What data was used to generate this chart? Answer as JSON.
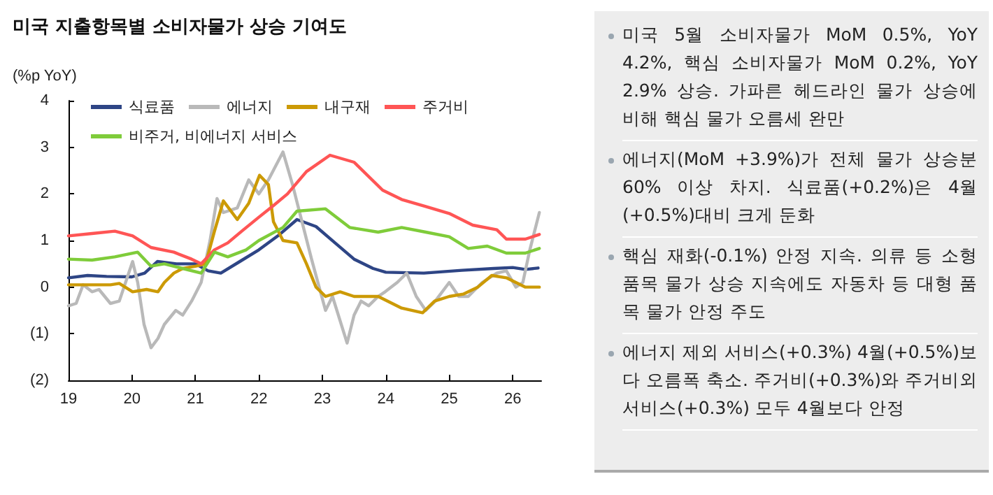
{
  "chart_data": [
    {
      "type": "line",
      "title": "미국 지출항목별 소비자물가 상승 기여도",
      "ylabel": "(%p YoY)",
      "legend": "top left",
      "xlim": [
        2019,
        2026.45
      ],
      "xticks": [
        {
          "value": 2019,
          "label": "19"
        },
        {
          "value": 2020,
          "label": "20"
        },
        {
          "value": 2021,
          "label": "21"
        },
        {
          "value": 2022,
          "label": "22"
        },
        {
          "value": 2023,
          "label": "23"
        },
        {
          "value": 2024,
          "label": "24"
        },
        {
          "value": 2025,
          "label": "25"
        },
        {
          "value": 2026,
          "label": "26"
        }
      ],
      "ylim": [
        -2,
        4
      ],
      "yticks": [
        {
          "value": -2,
          "label": "(2)"
        },
        {
          "value": -1,
          "label": "(1)"
        },
        0,
        1,
        2,
        3,
        4
      ],
      "series": [
        {
          "name": "식료품",
          "color": "#2e4585",
          "x": [
            2019,
            2019.3,
            2019.6,
            2020,
            2020.2,
            2020.4,
            2020.7,
            2021,
            2021.2,
            2021.4,
            2021.7,
            2022,
            2022.3,
            2022.6,
            2022.9,
            2023.2,
            2023.5,
            2023.8,
            2024,
            2024.6,
            2025.2,
            2025.7,
            2026,
            2026.2,
            2026.4
          ],
          "values": [
            0.2,
            0.25,
            0.23,
            0.22,
            0.3,
            0.55,
            0.5,
            0.5,
            0.35,
            0.3,
            0.55,
            0.8,
            1.1,
            1.45,
            1.3,
            0.95,
            0.6,
            0.4,
            0.32,
            0.3,
            0.36,
            0.4,
            0.42,
            0.38,
            0.41
          ]
        },
        {
          "name": "에너지",
          "color": "#b9b9b9",
          "x": [
            2019,
            2019.12,
            2019.23,
            2019.37,
            2019.48,
            2019.66,
            2019.8,
            2020.01,
            2020.09,
            2020.19,
            2020.3,
            2020.41,
            2020.51,
            2020.69,
            2020.8,
            2020.94,
            2021.09,
            2021.23,
            2021.34,
            2021.44,
            2021.66,
            2021.84,
            2022,
            2022.15,
            2022.38,
            2022.53,
            2022.68,
            2022.83,
            2023.05,
            2023.16,
            2023.39,
            2023.5,
            2023.61,
            2023.73,
            2023.88,
            2023.99,
            2024.18,
            2024.33,
            2024.48,
            2024.63,
            2024.78,
            2025,
            2025.15,
            2025.3,
            2025.52,
            2025.75,
            2025.9,
            2026.05,
            2026.16,
            2026.27,
            2026.42
          ],
          "values": [
            -0.4,
            -0.35,
            0.05,
            -0.1,
            -0.05,
            -0.35,
            -0.3,
            0.55,
            0.1,
            -0.8,
            -1.3,
            -1.1,
            -0.8,
            -0.5,
            -0.6,
            -0.3,
            0.1,
            1.0,
            1.9,
            1.6,
            1.7,
            2.3,
            2.0,
            2.3,
            2.9,
            2.2,
            1.4,
            0.6,
            -0.5,
            -0.2,
            -1.2,
            -0.6,
            -0.3,
            -0.4,
            -0.2,
            -0.1,
            0.1,
            0.3,
            -0.2,
            -0.5,
            -0.3,
            0.1,
            -0.2,
            -0.2,
            0.1,
            0.3,
            0.35,
            0,
            0.1,
            0.8,
            1.6
          ]
        },
        {
          "name": "내구재",
          "color": "#cc9a06",
          "x": [
            2019,
            2019.37,
            2019.66,
            2019.8,
            2020.01,
            2020.23,
            2020.41,
            2020.51,
            2020.66,
            2020.8,
            2021.01,
            2021.16,
            2021.3,
            2021.44,
            2021.66,
            2021.84,
            2022.01,
            2022.15,
            2022.23,
            2022.38,
            2022.6,
            2022.75,
            2022.9,
            2023.05,
            2023.28,
            2023.5,
            2023.88,
            2024.25,
            2024.58,
            2024.77,
            2025,
            2025.22,
            2025.45,
            2025.67,
            2025.9,
            2026.05,
            2026.2,
            2026.42
          ],
          "values": [
            0.05,
            0.05,
            0.05,
            0.08,
            -0.1,
            -0.05,
            -0.1,
            0.1,
            0.3,
            0.4,
            0.45,
            0.5,
            1.2,
            1.85,
            1.45,
            1.8,
            2.4,
            2.2,
            1.4,
            1.0,
            0.95,
            0.5,
            0,
            -0.2,
            -0.1,
            -0.2,
            -0.2,
            -0.45,
            -0.55,
            -0.3,
            -0.2,
            -0.15,
            0,
            0.25,
            0.2,
            0.1,
            0,
            0
          ]
        },
        {
          "name": "주거비",
          "color": "#ff5555",
          "x": [
            2019,
            2019.37,
            2019.73,
            2020.01,
            2020.3,
            2020.66,
            2020.94,
            2021.09,
            2021.3,
            2021.51,
            2021.73,
            2022,
            2022.23,
            2022.45,
            2022.75,
            2023.12,
            2023.5,
            2023.95,
            2024.25,
            2024.63,
            2025,
            2025.37,
            2025.75,
            2025.9,
            2026.2,
            2026.42
          ],
          "values": [
            1.1,
            1.15,
            1.2,
            1.1,
            0.85,
            0.75,
            0.6,
            0.5,
            0.8,
            0.95,
            1.2,
            1.5,
            1.75,
            2.0,
            2.48,
            2.83,
            2.68,
            2.08,
            1.88,
            1.73,
            1.58,
            1.33,
            1.23,
            1.03,
            1.03,
            1.13
          ]
        },
        {
          "name": "비주거, 비에너지 서비스",
          "color": "#7fcc3a",
          "x": [
            2019,
            2019.37,
            2019.73,
            2020.09,
            2020.3,
            2020.51,
            2020.8,
            2021.09,
            2021.3,
            2021.51,
            2021.8,
            2022,
            2022.38,
            2022.6,
            2023.05,
            2023.43,
            2023.88,
            2024.25,
            2024.63,
            2025,
            2025.3,
            2025.6,
            2025.9,
            2026.2,
            2026.42
          ],
          "values": [
            0.6,
            0.58,
            0.65,
            0.75,
            0.45,
            0.5,
            0.4,
            0.3,
            0.75,
            0.65,
            0.8,
            1.0,
            1.28,
            1.63,
            1.68,
            1.28,
            1.18,
            1.28,
            1.18,
            1.08,
            0.83,
            0.88,
            0.73,
            0.73,
            0.83
          ]
        }
      ]
    },
    {
      "type": "other",
      "annotations": [
        "미국 5월 소비자물가 MoM 0.5%, YoY 4.2%, 핵심 소비자물가 MoM 0.2%, YoY 2.9% 상승. 가파른 헤드라인 물가 상승에 비해 핵심 물가 오름세 완만",
        "에너지(MoM +3.9%)가 전체 물가 상승분 60% 이상 차지. 식료품(+0.2%)은 4월(+0.5%)대비 크게 둔화",
        "핵심 재화(-0.1%) 안정 지속. 의류 등 소형 품목 물가 상승 지속에도 자동차 등 대형 품목 물가 안정 주도",
        "에너지 제외 서비스(+0.3%) 4월(+0.5%)보다 오름폭 축소. 주거비(+0.3%)와 주거비외서비스(+0.3%) 모두 4월보다 안정"
      ]
    }
  ]
}
